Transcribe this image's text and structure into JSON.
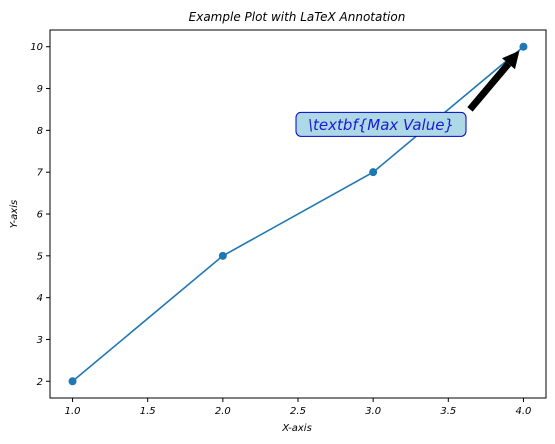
{
  "chart_data": {
    "type": "line",
    "title": "Example Plot with LaTeX Annotation",
    "xlabel": "X-axis",
    "ylabel": "Y-axis",
    "x": [
      1,
      2,
      3,
      4
    ],
    "y": [
      2,
      5,
      7,
      10
    ],
    "xlim": [
      0.85,
      4.15
    ],
    "ylim": [
      1.6,
      10.4
    ],
    "xticks": [
      "1.0",
      "1.5",
      "2.0",
      "2.5",
      "3.0",
      "3.5",
      "4.0"
    ],
    "yticks": [
      "2",
      "3",
      "4",
      "5",
      "6",
      "7",
      "8",
      "9",
      "10"
    ],
    "grid": false,
    "series_color": "#1f77b4",
    "annotation": {
      "text": "\\textbf{Max Value}",
      "text_x": 2.5,
      "text_y": 8,
      "point_x": 4,
      "point_y": 10,
      "box_color": "#add8e6",
      "text_color": "#1a1ad6"
    }
  }
}
